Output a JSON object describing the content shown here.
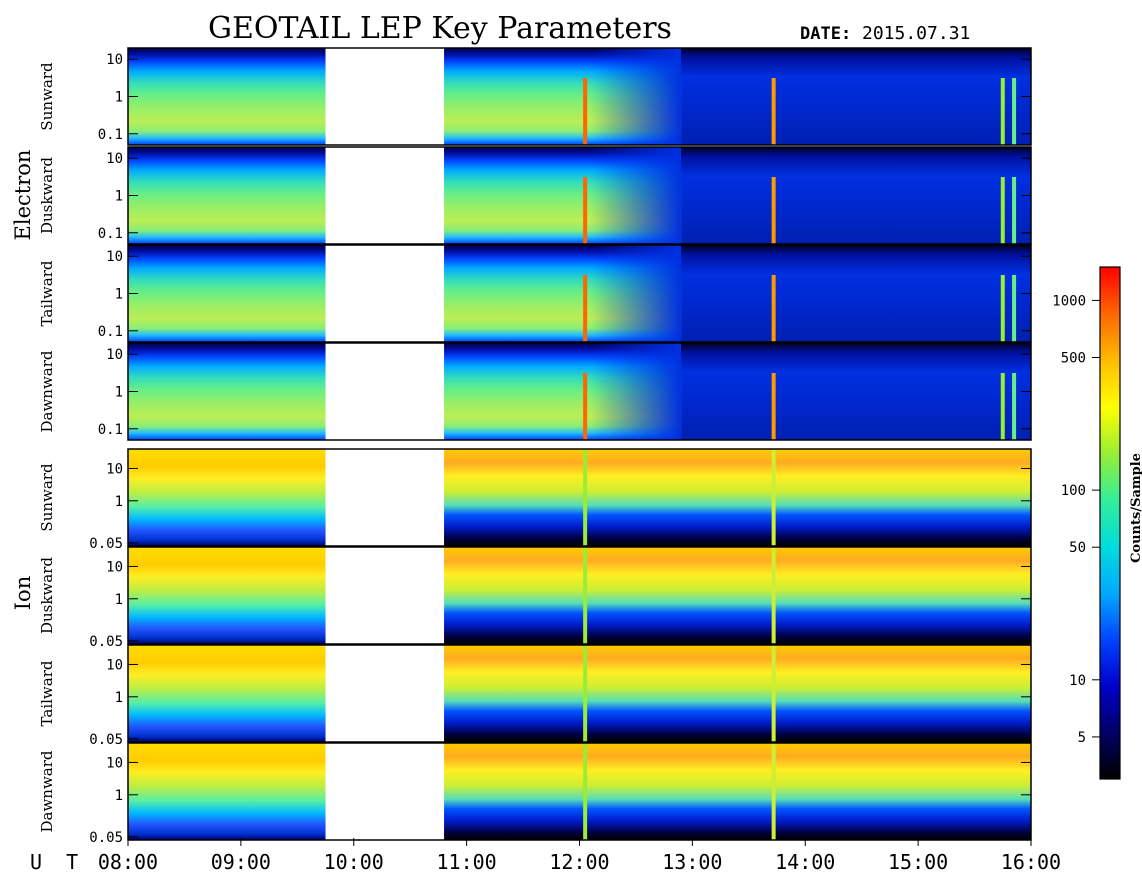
{
  "header": {
    "title": "GEOTAIL LEP Key Parameters",
    "date_label": "DATE:",
    "date_value": "2015.07.31"
  },
  "groups": [
    {
      "label": "Electron"
    },
    {
      "label": "Ion"
    }
  ],
  "colorbar": {
    "label": "Counts/Sample",
    "ticks": [
      "1000",
      "500",
      "100",
      "50",
      "10",
      "5"
    ],
    "tick_values": [
      1000,
      500,
      100,
      50,
      10,
      5
    ],
    "range": [
      3,
      1500
    ],
    "scale": "log",
    "colors": [
      "#000000",
      "#000066",
      "#0000cc",
      "#0044ff",
      "#00aaff",
      "#00dddd",
      "#33ee99",
      "#99ee33",
      "#ffff00",
      "#ffbb00",
      "#ff6600",
      "#ff0000"
    ]
  },
  "x_axis": {
    "label": "U T",
    "ticks": [
      "08:00",
      "09:00",
      "10:00",
      "11:00",
      "12:00",
      "13:00",
      "14:00",
      "15:00",
      "16:00"
    ],
    "tick_hours": [
      8,
      9,
      10,
      11,
      12,
      13,
      14,
      15,
      16
    ]
  },
  "chart_data": {
    "type": "heatmap",
    "title": "GEOTAIL LEP Key Parameters",
    "date": "2015.07.31",
    "x_range_hours": [
      8,
      16
    ],
    "data_gap_hours": [
      9.75,
      10.8
    ],
    "y_scale": "log",
    "panels": [
      {
        "group": "Electron",
        "direction": "Sunward",
        "yticks": [
          "10",
          "1",
          "0.1"
        ],
        "ylim": [
          0.05,
          20
        ],
        "profile": "electron"
      },
      {
        "group": "Electron",
        "direction": "Duskward",
        "yticks": [
          "10",
          "1",
          "0.1"
        ],
        "ylim": [
          0.05,
          20
        ],
        "profile": "electron"
      },
      {
        "group": "Electron",
        "direction": "Tailward",
        "yticks": [
          "10",
          "1",
          "0.1"
        ],
        "ylim": [
          0.05,
          20
        ],
        "profile": "electron"
      },
      {
        "group": "Electron",
        "direction": "Dawnward",
        "yticks": [
          "10",
          "1",
          "0.1"
        ],
        "ylim": [
          0.05,
          20
        ],
        "profile": "electron"
      },
      {
        "group": "Ion",
        "direction": "Sunward",
        "yticks": [
          "10",
          "1",
          "0.05"
        ],
        "ylim": [
          0.04,
          40
        ],
        "profile": "ion"
      },
      {
        "group": "Ion",
        "direction": "Duskward",
        "yticks": [
          "10",
          "1",
          "0.05"
        ],
        "ylim": [
          0.04,
          40
        ],
        "profile": "ion"
      },
      {
        "group": "Ion",
        "direction": "Tailward",
        "yticks": [
          "10",
          "1",
          "0.05"
        ],
        "ylim": [
          0.04,
          40
        ],
        "profile": "ion"
      },
      {
        "group": "Ion",
        "direction": "Dawnward",
        "yticks": [
          "10",
          "1",
          "0.05"
        ],
        "ylim": [
          0.04,
          40
        ],
        "profile": "ion"
      }
    ],
    "colorbar_label": "Counts/Sample",
    "colorbar_range": [
      3,
      1500
    ]
  }
}
